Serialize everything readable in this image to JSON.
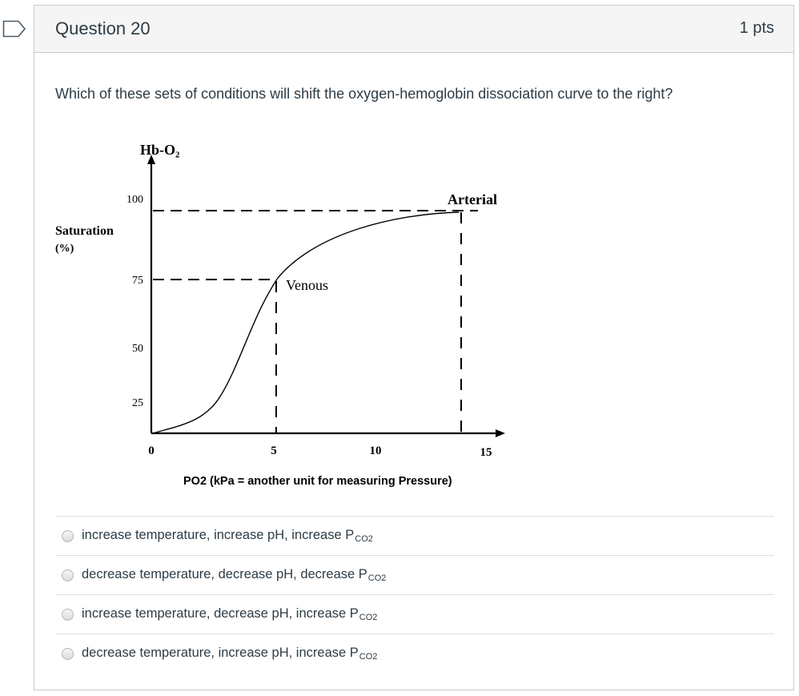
{
  "question": {
    "title": "Question 20",
    "points": "1 pts",
    "text": "Which of these sets of conditions will shift the oxygen-hemoglobin dissociation curve to the right?"
  },
  "figure": {
    "y_axis_title": "Hb-O₂",
    "y_axis_label_line1": "Saturation",
    "y_axis_label_line2": "(%)",
    "y_ticks": [
      "100",
      "75",
      "50",
      "25"
    ],
    "x_ticks": [
      "0",
      "5",
      "10",
      "15"
    ],
    "x_axis_label": "PO2 (kPa = another unit for measuring Pressure)",
    "venous_label": "Venous",
    "arterial_label": "Arterial"
  },
  "answers": [
    {
      "text": "increase temperature, increase pH, increase P",
      "sub": "CO2"
    },
    {
      "text": "decrease temperature, decrease pH, decrease P",
      "sub": "CO2"
    },
    {
      "text": "increase temperature, decrease pH, increase P",
      "sub": "CO2"
    },
    {
      "text": "decrease temperature, increase pH, increase P",
      "sub": "CO2"
    }
  ],
  "colors": {
    "text": "#2d3b45",
    "border": "#c7cdd1",
    "header_bg": "#f5f5f5"
  },
  "icons": {
    "bookmark": "bookmark-icon"
  }
}
